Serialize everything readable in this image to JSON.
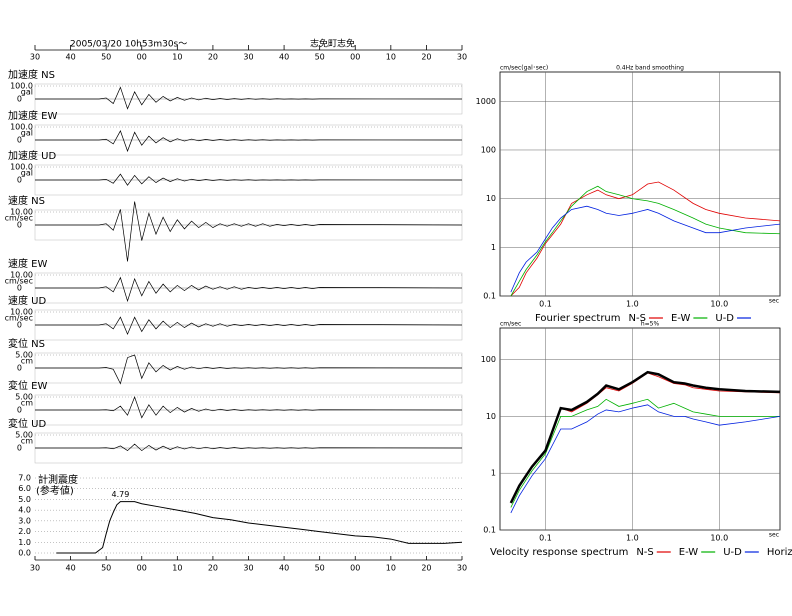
{
  "header": {
    "datetime": "2005/03/20 10h53m30s～",
    "station": "志免町志免"
  },
  "chart_data": [
    {
      "type": "waveform",
      "color": "#000000",
      "xlim": [
        0,
        120
      ],
      "xticks": [
        {
          "value": 0,
          "label": "30"
        },
        {
          "value": 10,
          "label": "40"
        },
        {
          "value": 20,
          "label": "50"
        },
        {
          "value": 30,
          "label": "00"
        },
        {
          "value": 40,
          "label": "10"
        },
        {
          "value": 50,
          "label": "20"
        },
        {
          "value": 60,
          "label": "30"
        },
        {
          "value": 70,
          "label": "40"
        },
        {
          "value": 80,
          "label": "50"
        },
        {
          "value": 90,
          "label": "00"
        },
        {
          "value": 100,
          "label": "10"
        },
        {
          "value": 110,
          "label": "20"
        },
        {
          "value": 120,
          "label": "30"
        }
      ],
      "x": [
        0,
        18,
        20,
        22,
        24,
        26,
        28,
        30,
        32,
        34,
        36,
        38,
        40,
        42,
        44,
        46,
        48,
        50,
        52,
        54,
        56,
        58,
        60,
        62,
        64,
        66,
        68,
        70,
        72,
        74,
        76,
        78,
        80,
        120
      ],
      "series": [
        {
          "name": "加速度 NS",
          "unit": "gal",
          "ylim": [
            -100,
            100
          ],
          "yticks": [
            0,
            {
              "value": 100,
              "label": "100.0"
            }
          ],
          "values": [
            0,
            0,
            8,
            -35,
            90,
            -75,
            55,
            -45,
            35,
            -25,
            20,
            -15,
            12,
            -10,
            8,
            -7,
            6,
            -5,
            4,
            -4,
            3,
            -3,
            3,
            -2,
            2,
            -2,
            2,
            -1,
            1,
            -1,
            1,
            -1,
            1,
            0
          ]
        },
        {
          "name": "加速度 EW",
          "unit": "gal",
          "ylim": [
            -100,
            100
          ],
          "yticks": [
            0,
            {
              "value": 100,
              "label": "100.0"
            }
          ],
          "values": [
            0,
            0,
            6,
            -30,
            70,
            -85,
            60,
            -40,
            30,
            -22,
            18,
            -14,
            10,
            -8,
            7,
            -6,
            5,
            -4,
            4,
            -3,
            3,
            -3,
            2,
            -2,
            2,
            -2,
            1,
            -1,
            1,
            -1,
            1,
            -1,
            1,
            0
          ]
        },
        {
          "name": "加速度 UD",
          "unit": "gal",
          "ylim": [
            -100,
            100
          ],
          "yticks": [
            0,
            {
              "value": 100,
              "label": "100.0"
            }
          ],
          "values": [
            0,
            0,
            5,
            -25,
            45,
            -40,
            35,
            -30,
            25,
            -20,
            15,
            -12,
            10,
            -8,
            6,
            -5,
            4,
            -4,
            3,
            -3,
            2,
            -2,
            2,
            -2,
            1,
            -1,
            1,
            -1,
            1,
            -1,
            1,
            -1,
            1,
            0
          ]
        },
        {
          "name": "速度 NS",
          "unit": "cm/sec",
          "ylim": [
            -10,
            10
          ],
          "yticks": [
            0,
            {
              "value": 10,
              "label": "10.00"
            }
          ],
          "values": [
            0,
            0,
            1,
            -4,
            12,
            -28,
            18,
            -12,
            9,
            -7,
            6,
            -5,
            4,
            -3,
            3,
            -2,
            2,
            -2,
            1,
            -1,
            1,
            -1,
            1,
            -1,
            1,
            -1,
            0.5,
            -0.5,
            0.5,
            -0.5,
            0.5,
            -0.5,
            0.5,
            0
          ]
        },
        {
          "name": "速度 EW",
          "unit": "cm/sec",
          "ylim": [
            -10,
            10
          ],
          "yticks": [
            0,
            {
              "value": 10,
              "label": "10.00"
            }
          ],
          "values": [
            0,
            0,
            1,
            -3,
            8,
            -10,
            7,
            -6,
            5,
            -4,
            3,
            -3,
            2,
            -2,
            2,
            -1.5,
            1.5,
            -1,
            1,
            -1,
            1,
            -1,
            0.5,
            -0.5,
            0.5,
            -0.5,
            0.5,
            -0.5,
            0.5,
            -0.5,
            0.5,
            -0.5,
            0.5,
            0
          ]
        },
        {
          "name": "速度 UD",
          "unit": "cm/sec",
          "ylim": [
            -10,
            10
          ],
          "yticks": [
            0,
            {
              "value": 10,
              "label": "10.00"
            }
          ],
          "values": [
            0,
            0,
            1,
            -3,
            6,
            -7,
            6,
            -5,
            4,
            -3,
            3,
            -2,
            2,
            -2,
            1.5,
            -1.5,
            1,
            -1,
            1,
            -1,
            0.5,
            -0.5,
            0.5,
            -0.5,
            0.5,
            -0.5,
            0.5,
            -0.5,
            0.5,
            -0.5,
            0.5,
            -0.5,
            0.5,
            0
          ]
        },
        {
          "name": "変位 NS",
          "unit": "cm",
          "ylim": [
            -5,
            5
          ],
          "yticks": [
            0,
            {
              "value": 5,
              "label": "5.00"
            }
          ],
          "values": [
            0,
            0,
            0.2,
            -0.5,
            -6,
            4,
            5,
            -4,
            2,
            -1.5,
            1,
            -0.8,
            0.6,
            -0.5,
            0.4,
            -0.3,
            0.3,
            -0.2,
            0.2,
            -0.2,
            0.1,
            -0.1,
            0.1,
            -0.1,
            0.1,
            -0.1,
            0.1,
            -0.1,
            0.1,
            -0.1,
            0.1,
            -0.1,
            0.1,
            0
          ]
        },
        {
          "name": "変位 EW",
          "unit": "cm",
          "ylim": [
            -5,
            5
          ],
          "yticks": [
            0,
            {
              "value": 5,
              "label": "5.00"
            }
          ],
          "values": [
            0,
            0,
            0.1,
            -0.3,
            1.5,
            -2,
            5,
            -3,
            2,
            -2,
            1.5,
            -1,
            1,
            -0.8,
            0.6,
            -0.5,
            0.4,
            -0.3,
            0.3,
            -0.2,
            0.2,
            -0.2,
            0.1,
            -0.1,
            0.1,
            -0.1,
            0.1,
            -0.1,
            0.1,
            -0.1,
            0.1,
            -0.1,
            0.1,
            0
          ]
        },
        {
          "name": "変位 UD",
          "unit": "cm",
          "ylim": [
            -5,
            5
          ],
          "yticks": [
            0,
            {
              "value": 5,
              "label": "5.00"
            }
          ],
          "values": [
            0,
            0,
            0.1,
            -0.3,
            0.8,
            -1,
            1.5,
            -1,
            1,
            -0.8,
            0.7,
            -0.6,
            0.5,
            -0.4,
            0.4,
            -0.3,
            0.3,
            -0.3,
            0.2,
            -0.2,
            0.2,
            -0.2,
            0.1,
            -0.1,
            0.1,
            -0.1,
            0.1,
            -0.1,
            0.1,
            -0.1,
            0.1,
            -0.1,
            0.1,
            0
          ]
        }
      ]
    },
    {
      "type": "line",
      "title": "計測震度",
      "subtitle": "(参考値)",
      "color": "#000000",
      "grid": true,
      "xlim": [
        0,
        120
      ],
      "xticks": [
        {
          "value": 0,
          "label": "30"
        },
        {
          "value": 10,
          "label": "40"
        },
        {
          "value": 20,
          "label": "50"
        },
        {
          "value": 30,
          "label": "00"
        },
        {
          "value": 40,
          "label": "10"
        },
        {
          "value": 50,
          "label": "20"
        },
        {
          "value": 60,
          "label": "30"
        },
        {
          "value": 70,
          "label": "40"
        },
        {
          "value": 80,
          "label": "50"
        },
        {
          "value": 90,
          "label": "00"
        },
        {
          "value": 100,
          "label": "10"
        },
        {
          "value": 110,
          "label": "20"
        },
        {
          "value": 120,
          "label": "30"
        }
      ],
      "ylim": [
        0,
        7
      ],
      "yticks": [
        {
          "value": 0,
          "label": "0.0"
        },
        {
          "value": 1,
          "label": "1.0"
        },
        {
          "value": 2,
          "label": "2.0"
        },
        {
          "value": 3,
          "label": "3.0"
        },
        {
          "value": 4,
          "label": "4.0"
        },
        {
          "value": 5,
          "label": "5.0"
        },
        {
          "value": 6,
          "label": "6.0"
        },
        {
          "value": 7,
          "label": "7.0"
        }
      ],
      "x": [
        6,
        17,
        19,
        20,
        21,
        22,
        23,
        24,
        28,
        30,
        35,
        40,
        45,
        50,
        55,
        60,
        65,
        70,
        75,
        80,
        85,
        90,
        95,
        100,
        105,
        110,
        115,
        120
      ],
      "values": [
        0,
        0,
        0.5,
        1.8,
        3.0,
        3.8,
        4.5,
        4.79,
        4.79,
        4.6,
        4.3,
        4.0,
        3.7,
        3.3,
        3.1,
        2.8,
        2.6,
        2.4,
        2.2,
        2.0,
        1.8,
        1.6,
        1.5,
        1.3,
        0.9,
        0.9,
        0.9,
        1.0
      ],
      "peak_label": "4.79"
    },
    {
      "type": "line",
      "title": "Fourier spectrum",
      "subtitle": "0.4Hz band smoothing",
      "ylabel": "cm/sec(gal･sec)",
      "xlabel": "sec",
      "xscale": "log",
      "yscale": "log",
      "grid": true,
      "xlim": [
        0.03,
        50
      ],
      "xticks": [
        0.1,
        {
          "value": 1,
          "label": "1.0"
        },
        {
          "value": 10,
          "label": "10.0"
        }
      ],
      "ylim": [
        0.1,
        4000
      ],
      "yticks": [
        0.1,
        1,
        10,
        100,
        1000
      ],
      "x": [
        0.04,
        0.05,
        0.06,
        0.08,
        0.1,
        0.12,
        0.15,
        0.2,
        0.3,
        0.4,
        0.5,
        0.7,
        1.0,
        1.5,
        2,
        3,
        5,
        7,
        10,
        20,
        50
      ],
      "series": [
        {
          "name": "N-S",
          "color": "#e00000",
          "values": [
            0.1,
            0.15,
            0.3,
            0.6,
            1.2,
            1.8,
            3,
            8,
            12,
            15,
            12,
            10,
            12,
            20,
            22,
            15,
            8,
            6,
            5,
            4,
            3.5
          ]
        },
        {
          "name": "E-W",
          "color": "#00b000",
          "values": [
            0.1,
            0.2,
            0.35,
            0.7,
            1.3,
            2,
            3.5,
            7,
            14,
            18,
            14,
            12,
            10,
            9,
            8,
            6,
            4,
            3,
            2.5,
            2,
            1.9
          ]
        },
        {
          "name": "U-D",
          "color": "#0020e0",
          "values": [
            0.12,
            0.3,
            0.5,
            0.8,
            1.5,
            2.5,
            4,
            6,
            7,
            6,
            5,
            4.5,
            5,
            6,
            5,
            3.5,
            2.5,
            2,
            2,
            2.5,
            3
          ]
        }
      ]
    },
    {
      "type": "line",
      "title": "Velocity response spectrum",
      "subtitle": "h=5%",
      "ylabel": "cm/sec",
      "xlabel": "sec",
      "xscale": "log",
      "yscale": "log",
      "grid": true,
      "xlim": [
        0.03,
        50
      ],
      "xticks": [
        0.1,
        {
          "value": 1,
          "label": "1.0"
        },
        {
          "value": 10,
          "label": "10.0"
        }
      ],
      "ylim": [
        0.1,
        360
      ],
      "yticks": [
        0.1,
        1,
        10,
        100
      ],
      "x": [
        0.04,
        0.05,
        0.07,
        0.1,
        0.15,
        0.2,
        0.3,
        0.4,
        0.5,
        0.7,
        1,
        1.5,
        2,
        3,
        4,
        5,
        7,
        10,
        20,
        50
      ],
      "series": [
        {
          "name": "N-S",
          "color": "#e00000",
          "values": [
            0.3,
            0.6,
            1.3,
            2.5,
            14,
            12,
            17,
            24,
            32,
            28,
            38,
            58,
            50,
            38,
            36,
            32,
            30,
            28,
            27,
            26
          ]
        },
        {
          "name": "E-W",
          "color": "#00b000",
          "values": [
            0.25,
            0.5,
            1.1,
            2.2,
            10,
            10,
            13,
            15,
            20,
            15,
            17,
            20,
            14,
            17,
            14,
            12,
            11,
            10,
            10,
            10
          ]
        },
        {
          "name": "U-D",
          "color": "#0020e0",
          "values": [
            0.2,
            0.4,
            0.9,
            1.8,
            6,
            6,
            8,
            11,
            13,
            12,
            14,
            16,
            12,
            10,
            10,
            9,
            8,
            7,
            8,
            10
          ]
        },
        {
          "name": "Horizon",
          "color": "#000000",
          "line_width": 2.5,
          "values": [
            0.3,
            0.6,
            1.3,
            2.5,
            14,
            13,
            18,
            25,
            35,
            30,
            40,
            60,
            55,
            40,
            38,
            35,
            32,
            30,
            28,
            27
          ]
        }
      ]
    }
  ]
}
